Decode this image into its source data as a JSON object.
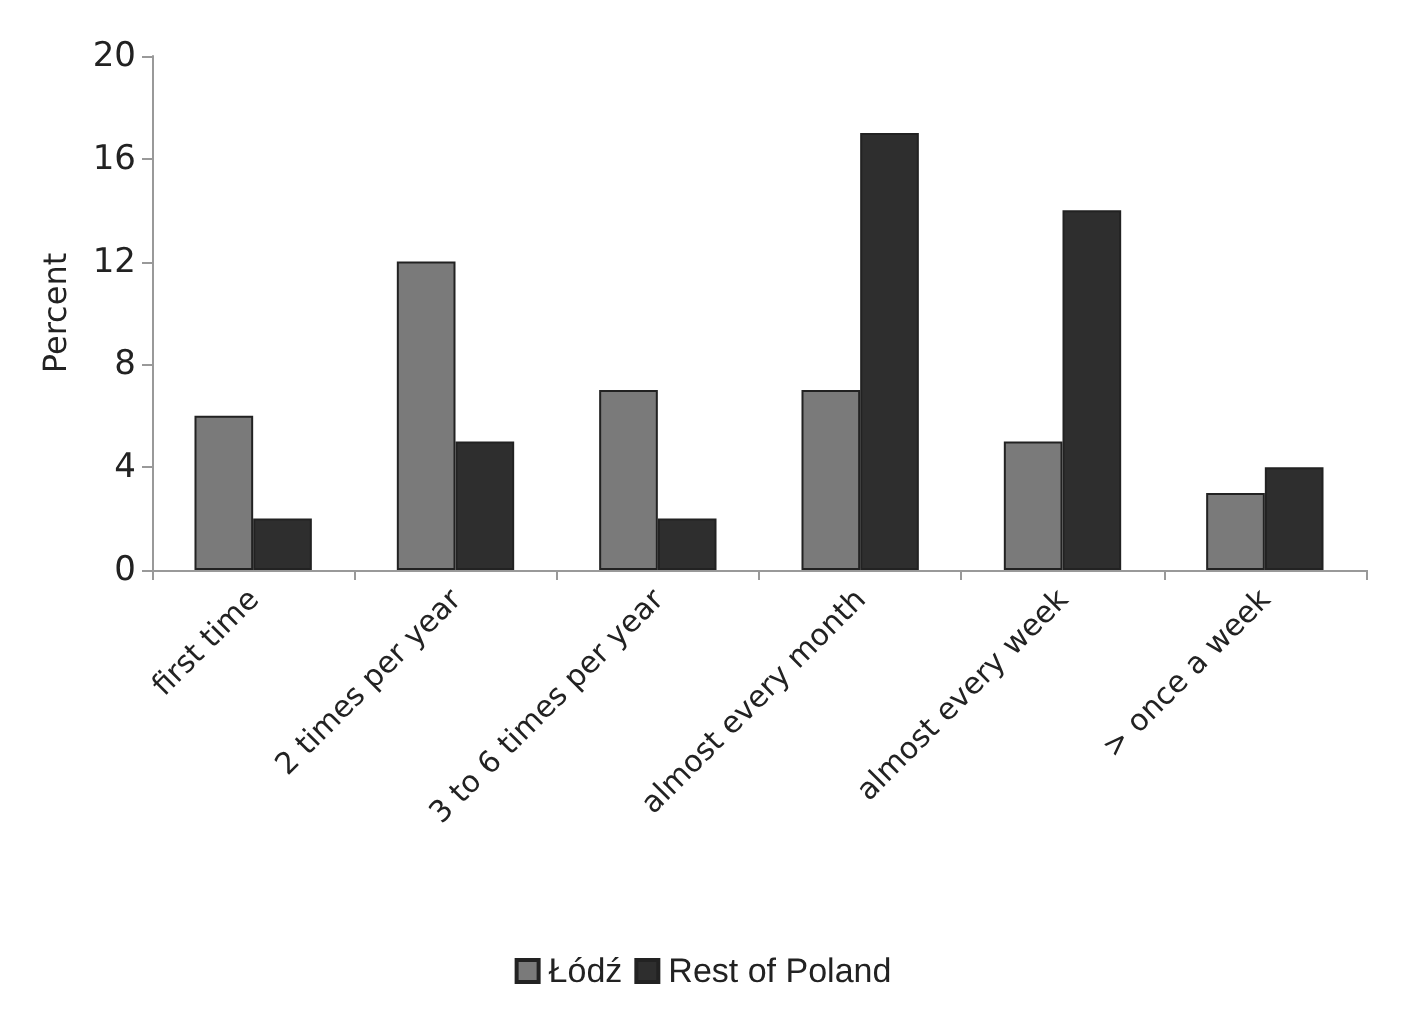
{
  "chart_data": {
    "type": "bar",
    "ylabel": "Percent",
    "categories": [
      "first time",
      "2 times per year",
      "3 to 6 times per year",
      "almost every month",
      "almost every week",
      "> once a week"
    ],
    "series": [
      {
        "name": "Łódź",
        "color": "#7a7a7a",
        "values": [
          6,
          12,
          7,
          7,
          5,
          3
        ]
      },
      {
        "name": "Rest of Poland",
        "color": "#2e2e2e",
        "values": [
          2,
          5,
          2,
          17,
          14,
          4
        ]
      }
    ],
    "ylim": [
      0,
      20
    ],
    "yticks": [
      0,
      4,
      8,
      12,
      16,
      20
    ],
    "grid": false,
    "legend": "bottom"
  }
}
